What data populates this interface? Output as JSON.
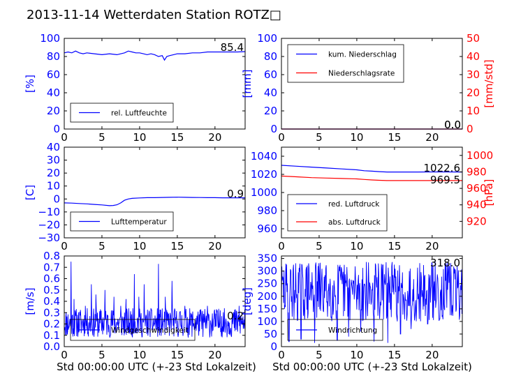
{
  "figure": {
    "title": "2013-11-14 Wetterdaten Station ROTZ□",
    "xlabel": "Std 00:00:00 UTC (+-23 Std Lokalzeit)"
  },
  "chart_data": [
    {
      "id": "humidity",
      "type": "line",
      "xlim": [
        0,
        24
      ],
      "xticks": [
        0,
        5,
        10,
        15,
        20
      ],
      "ylim": [
        0,
        100
      ],
      "yticks": [
        0,
        20,
        40,
        60,
        80,
        100
      ],
      "ylabel": "[%]",
      "value_label": "85.4",
      "legend": {
        "placement": "lower-left",
        "entries": [
          "rel. Luftfeuchte"
        ]
      },
      "series": [
        {
          "name": "rel. Luftfeuchte",
          "color": "#0000ff",
          "axis": "left",
          "style": "smooth",
          "x": [
            0,
            0.5,
            1,
            1.5,
            2,
            2.5,
            3,
            4,
            5,
            6,
            7,
            8,
            8.5,
            9,
            9.5,
            10,
            10.5,
            11,
            11.5,
            12,
            12.5,
            13,
            13.3,
            13.6,
            14,
            14.5,
            15,
            16,
            17,
            18,
            19,
            20,
            21,
            22,
            23,
            24
          ],
          "y": [
            84,
            85,
            84,
            86,
            84,
            83,
            84,
            83,
            82,
            83,
            82,
            84,
            86,
            85,
            84,
            84,
            83,
            82,
            83,
            82,
            80,
            81,
            76,
            80,
            81,
            82,
            83,
            83,
            84,
            84,
            85,
            85,
            85,
            85,
            85,
            85.4
          ]
        }
      ]
    },
    {
      "id": "precipitation",
      "type": "line",
      "xlim": [
        0,
        24
      ],
      "xticks": [
        0,
        5,
        10,
        15,
        20
      ],
      "ylim": [
        0,
        100
      ],
      "yticks": [
        0,
        20,
        40,
        60,
        80,
        100
      ],
      "ylabel": "[mm]",
      "ylim2": [
        0,
        50
      ],
      "yticks2": [
        0,
        10,
        20,
        30,
        40,
        50
      ],
      "ylabel2": "[mm/std]",
      "value_labels": [
        "0.0",
        "0.0"
      ],
      "legend": {
        "placement": "upper-left",
        "entries": [
          "kum. Niederschlag",
          "Niederschlagsrate"
        ]
      },
      "series": [
        {
          "name": "kum. Niederschlag",
          "color": "#0000ff",
          "axis": "left",
          "style": "smooth",
          "x": [
            0,
            24
          ],
          "y": [
            0,
            0
          ]
        },
        {
          "name": "Niederschlagsrate",
          "color": "#ff0000",
          "axis": "right",
          "style": "smooth",
          "x": [
            0,
            24
          ],
          "y": [
            0,
            0
          ]
        }
      ]
    },
    {
      "id": "temperature",
      "type": "line",
      "xlim": [
        0,
        24
      ],
      "xticks": [
        0,
        5,
        10,
        15,
        20
      ],
      "ylim": [
        -30,
        40
      ],
      "yticks": [
        -30,
        -20,
        -10,
        0,
        10,
        20,
        30,
        40
      ],
      "ylabel": "[C]",
      "value_label": "0.9",
      "legend": {
        "placement": "lower-left",
        "entries": [
          "Lufttemperatur"
        ]
      },
      "series": [
        {
          "name": "Lufttemperatur",
          "color": "#0000ff",
          "axis": "left",
          "style": "smooth",
          "x": [
            0,
            1,
            2,
            3,
            4,
            5,
            6,
            6.5,
            7,
            7.5,
            8,
            8.5,
            9,
            10,
            11,
            12,
            13,
            14,
            15,
            16,
            17,
            18,
            19,
            20,
            21,
            22,
            23,
            24
          ],
          "y": [
            -3,
            -3.2,
            -3.5,
            -3.8,
            -4.2,
            -4.6,
            -5.2,
            -5.0,
            -4.5,
            -3,
            -1,
            0,
            0.5,
            0.8,
            1.0,
            1.0,
            1.2,
            1.3,
            1.4,
            1.3,
            1.2,
            1.1,
            1.0,
            1.0,
            0.9,
            0.9,
            0.9,
            0.9
          ]
        }
      ]
    },
    {
      "id": "pressure",
      "type": "line",
      "xlim": [
        0,
        24
      ],
      "xticks": [
        0,
        5,
        10,
        15,
        20
      ],
      "ylim": [
        950,
        1050
      ],
      "yticks": [
        960,
        980,
        1000,
        1020,
        1040
      ],
      "ylim2": [
        900,
        1010
      ],
      "yticks2": [
        920,
        940,
        960,
        980,
        1000
      ],
      "ylabel2": "[hPa]",
      "value_labels": [
        "1022.6",
        "969.5"
      ],
      "legend": {
        "placement": "lower-left",
        "entries": [
          "red. Luftdruck",
          "abs. Luftdruck"
        ]
      },
      "series": [
        {
          "name": "red. Luftdruck",
          "color": "#0000ff",
          "axis": "left",
          "style": "smooth",
          "x": [
            0,
            2,
            4,
            6,
            8,
            10,
            11,
            12,
            13,
            14,
            16,
            18,
            20,
            22,
            24
          ],
          "y": [
            1030,
            1029,
            1028,
            1027,
            1026,
            1025,
            1024,
            1023.5,
            1023,
            1022.6,
            1022.6,
            1022.6,
            1022.7,
            1022.7,
            1022.6
          ]
        },
        {
          "name": "abs. Luftdruck",
          "color": "#ff0000",
          "axis": "right",
          "style": "smooth",
          "x": [
            0,
            2,
            4,
            6,
            8,
            10,
            11,
            12,
            13,
            14,
            16,
            18,
            20,
            22,
            24
          ],
          "y": [
            975,
            974,
            973,
            972.5,
            972,
            971.5,
            970.8,
            970.2,
            969.8,
            969.5,
            969.5,
            969.5,
            969.5,
            969.5,
            969.5
          ]
        }
      ]
    },
    {
      "id": "windspeed",
      "type": "line",
      "xlim": [
        0,
        24
      ],
      "xticks": [
        0,
        5,
        10,
        15,
        20
      ],
      "ylim": [
        0,
        0.8
      ],
      "yticks": [
        0.0,
        0.1,
        0.2,
        0.3,
        0.4,
        0.5,
        0.6,
        0.7,
        0.8
      ],
      "ylabel": "[m/s]",
      "value_label": "0.2",
      "legend": {
        "placement": "lower-left",
        "entries": [
          "Windgeschwindigkeit"
        ]
      },
      "series": [
        {
          "name": "Windgeschwindigkeit",
          "color": "#0000ff",
          "axis": "left",
          "style": "noisy",
          "seed": 11,
          "n": 480,
          "noise_min": 0.08,
          "noise_max": 0.34,
          "spikes": [
            [
              0.9,
              0.75
            ],
            [
              1.3,
              0.42
            ],
            [
              2.8,
              0.36
            ],
            [
              3.6,
              0.55
            ],
            [
              4.2,
              0.46
            ],
            [
              5.4,
              0.5
            ],
            [
              6.6,
              0.44
            ],
            [
              7.5,
              0.36
            ],
            [
              8.2,
              0.42
            ],
            [
              9.3,
              0.64
            ],
            [
              9.9,
              0.44
            ],
            [
              10.6,
              0.55
            ],
            [
              12.5,
              0.73
            ],
            [
              13.4,
              0.44
            ],
            [
              14.3,
              0.58
            ],
            [
              16.0,
              0.36
            ],
            [
              19.0,
              0.36
            ],
            [
              20.7,
              0.32
            ],
            [
              22.5,
              0.3
            ],
            [
              23.2,
              0.36
            ]
          ],
          "end": 0.2
        }
      ]
    },
    {
      "id": "winddirection",
      "type": "line",
      "xlim": [
        0,
        24
      ],
      "xticks": [
        0,
        5,
        10,
        15,
        20
      ],
      "ylim": [
        0,
        360
      ],
      "yticks": [
        0,
        50,
        100,
        150,
        200,
        250,
        300,
        350
      ],
      "ylabel": "[deg]",
      "value_label": "318.0",
      "legend": {
        "placement": "lower-left",
        "entries": [
          "Windrichtung"
        ]
      },
      "series": [
        {
          "name": "Windrichtung",
          "color": "#0000ff",
          "axis": "left",
          "style": "noisy",
          "seed": 29,
          "n": 420,
          "noise_min": 100,
          "noise_max": 340,
          "spikes": [
            [
              1.0,
              20
            ],
            [
              2.6,
              30
            ],
            [
              4.4,
              15
            ],
            [
              7.4,
              25
            ],
            [
              8.9,
              40
            ],
            [
              10.5,
              60
            ],
            [
              12.3,
              20
            ],
            [
              14.1,
              15
            ],
            [
              15.8,
              50
            ],
            [
              17.2,
              70
            ],
            [
              19.4,
              90
            ],
            [
              21.0,
              110
            ]
          ],
          "end": 318
        }
      ]
    }
  ]
}
